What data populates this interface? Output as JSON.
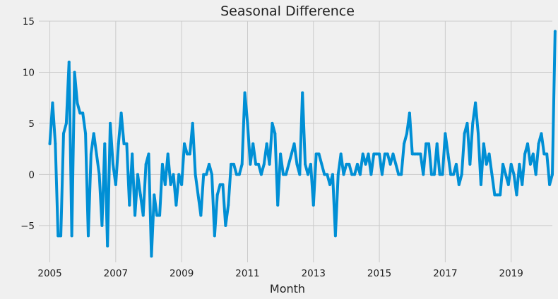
{
  "chart_data": {
    "type": "line",
    "title": "Seasonal Difference",
    "xlabel": "Month",
    "ylabel": "",
    "xlim": [
      "2004-09",
      "2020-04"
    ],
    "ylim": [
      -8.6,
      15
    ],
    "x_ticks": [
      "2005",
      "2007",
      "2009",
      "2011",
      "2013",
      "2015",
      "2017",
      "2019"
    ],
    "y_ticks": [
      15,
      10,
      5,
      0,
      -5
    ],
    "y_tick_labels": [
      "15",
      "10",
      "5",
      "0",
      "−5"
    ],
    "grid": true,
    "line_color": "#008fd5",
    "series": [
      {
        "start": "2005-01",
        "frequency": "monthly",
        "values": [
          3,
          7,
          3,
          -6,
          -6,
          4,
          5,
          11,
          -6,
          10,
          7,
          6,
          6,
          4,
          -6,
          2,
          4,
          2,
          0,
          -5,
          3,
          -7,
          5,
          1,
          -1,
          3,
          6,
          3,
          3,
          -3,
          2,
          -4,
          0,
          -2,
          -4,
          1,
          2,
          -8,
          -2,
          -4,
          -4,
          1,
          -1,
          2,
          -1,
          0,
          -3,
          0,
          -1,
          3,
          2,
          2,
          5,
          0,
          -2,
          -4,
          0,
          0,
          1,
          0,
          -6,
          -2,
          -1,
          -1,
          -5,
          -3,
          1,
          1,
          0,
          0,
          1,
          8,
          5,
          1,
          3,
          1,
          1,
          0,
          1,
          3,
          1,
          5,
          4,
          -3,
          2,
          0,
          0,
          1,
          2,
          3,
          1,
          0,
          8,
          1,
          0,
          1,
          -3,
          2,
          2,
          1,
          0,
          0,
          -1,
          0,
          -6,
          0,
          2,
          0,
          1,
          1,
          0,
          0,
          1,
          0,
          2,
          1,
          2,
          0,
          2,
          2,
          2,
          0,
          2,
          2,
          1,
          2,
          1,
          0,
          0,
          3,
          4,
          6,
          2,
          2,
          2,
          2,
          0,
          3,
          3,
          0,
          0,
          3,
          0,
          0,
          4,
          2,
          0,
          0,
          1,
          -1,
          0,
          4,
          5,
          1,
          5,
          7,
          4,
          -1,
          3,
          1,
          2,
          0,
          -2,
          -2,
          -2,
          1,
          0,
          -1,
          1,
          0,
          -2,
          1,
          -1,
          2,
          3,
          1,
          2,
          0,
          3,
          4,
          2,
          2,
          -1,
          0,
          14
        ]
      }
    ]
  }
}
